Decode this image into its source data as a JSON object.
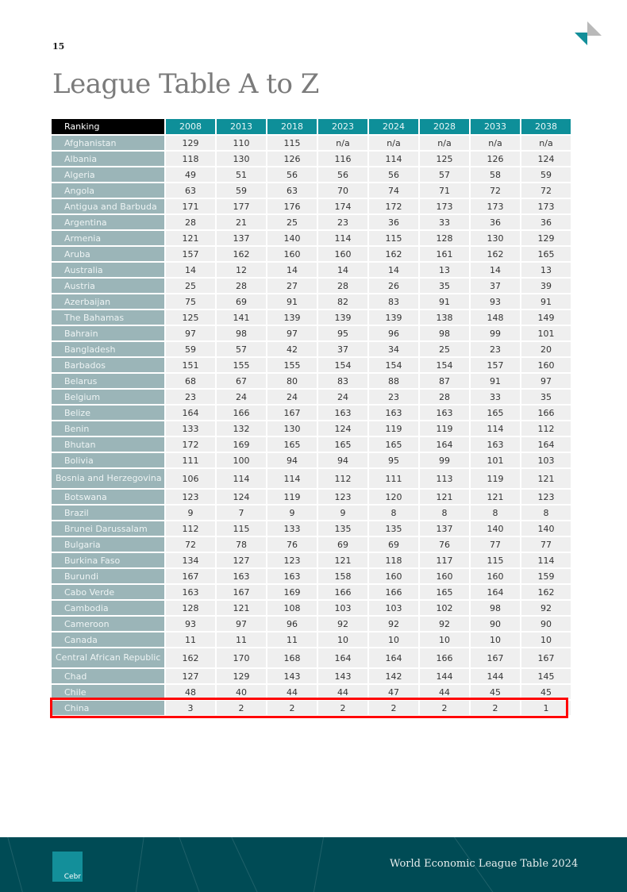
{
  "page_number": "15",
  "title": "League Table A to Z",
  "table": {
    "header": [
      "Ranking",
      "2008",
      "2013",
      "2018",
      "2023",
      "2024",
      "2028",
      "2033",
      "2038"
    ],
    "rows": [
      {
        "country": "Afghanistan",
        "values": [
          "129",
          "110",
          "115",
          "n/a",
          "n/a",
          "n/a",
          "n/a",
          "n/a"
        ]
      },
      {
        "country": "Albania",
        "values": [
          "118",
          "130",
          "126",
          "116",
          "114",
          "125",
          "126",
          "124"
        ]
      },
      {
        "country": "Algeria",
        "values": [
          "49",
          "51",
          "56",
          "56",
          "56",
          "57",
          "58",
          "59"
        ]
      },
      {
        "country": "Angola",
        "values": [
          "63",
          "59",
          "63",
          "70",
          "74",
          "71",
          "72",
          "72"
        ]
      },
      {
        "country": "Antigua and Barbuda",
        "values": [
          "171",
          "177",
          "176",
          "174",
          "172",
          "173",
          "173",
          "173"
        ]
      },
      {
        "country": "Argentina",
        "values": [
          "28",
          "21",
          "25",
          "23",
          "36",
          "33",
          "36",
          "36"
        ]
      },
      {
        "country": "Armenia",
        "values": [
          "121",
          "137",
          "140",
          "114",
          "115",
          "128",
          "130",
          "129"
        ]
      },
      {
        "country": "Aruba",
        "values": [
          "157",
          "162",
          "160",
          "160",
          "162",
          "161",
          "162",
          "165"
        ]
      },
      {
        "country": "Australia",
        "values": [
          "14",
          "12",
          "14",
          "14",
          "14",
          "13",
          "14",
          "13"
        ]
      },
      {
        "country": "Austria",
        "values": [
          "25",
          "28",
          "27",
          "28",
          "26",
          "35",
          "37",
          "39"
        ]
      },
      {
        "country": "Azerbaijan",
        "values": [
          "75",
          "69",
          "91",
          "82",
          "83",
          "91",
          "93",
          "91"
        ]
      },
      {
        "country": "The Bahamas",
        "values": [
          "125",
          "141",
          "139",
          "139",
          "139",
          "138",
          "148",
          "149"
        ]
      },
      {
        "country": "Bahrain",
        "values": [
          "97",
          "98",
          "97",
          "95",
          "96",
          "98",
          "99",
          "101"
        ]
      },
      {
        "country": "Bangladesh",
        "values": [
          "59",
          "57",
          "42",
          "37",
          "34",
          "25",
          "23",
          "20"
        ]
      },
      {
        "country": "Barbados",
        "values": [
          "151",
          "155",
          "155",
          "154",
          "154",
          "154",
          "157",
          "160"
        ]
      },
      {
        "country": "Belarus",
        "values": [
          "68",
          "67",
          "80",
          "83",
          "88",
          "87",
          "91",
          "97"
        ]
      },
      {
        "country": "Belgium",
        "values": [
          "23",
          "24",
          "24",
          "24",
          "23",
          "28",
          "33",
          "35"
        ]
      },
      {
        "country": "Belize",
        "values": [
          "164",
          "166",
          "167",
          "163",
          "163",
          "163",
          "165",
          "166"
        ]
      },
      {
        "country": "Benin",
        "values": [
          "133",
          "132",
          "130",
          "124",
          "119",
          "119",
          "114",
          "112"
        ]
      },
      {
        "country": "Bhutan",
        "values": [
          "172",
          "169",
          "165",
          "165",
          "165",
          "164",
          "163",
          "164"
        ]
      },
      {
        "country": "Bolivia",
        "values": [
          "111",
          "100",
          "94",
          "94",
          "95",
          "99",
          "101",
          "103"
        ]
      },
      {
        "country": "Bosnia and Herzegovina",
        "values": [
          "106",
          "114",
          "114",
          "112",
          "111",
          "113",
          "119",
          "121"
        ]
      },
      {
        "country": "Botswana",
        "values": [
          "123",
          "124",
          "119",
          "123",
          "120",
          "121",
          "121",
          "123"
        ]
      },
      {
        "country": "Brazil",
        "values": [
          "9",
          "7",
          "9",
          "9",
          "8",
          "8",
          "8",
          "8"
        ]
      },
      {
        "country": "Brunei Darussalam",
        "values": [
          "112",
          "115",
          "133",
          "135",
          "135",
          "137",
          "140",
          "140"
        ]
      },
      {
        "country": "Bulgaria",
        "values": [
          "72",
          "78",
          "76",
          "69",
          "69",
          "76",
          "77",
          "77"
        ]
      },
      {
        "country": "Burkina Faso",
        "values": [
          "134",
          "127",
          "123",
          "121",
          "118",
          "117",
          "115",
          "114"
        ]
      },
      {
        "country": "Burundi",
        "values": [
          "167",
          "163",
          "163",
          "158",
          "160",
          "160",
          "160",
          "159"
        ]
      },
      {
        "country": "Cabo Verde",
        "values": [
          "163",
          "167",
          "169",
          "166",
          "166",
          "165",
          "164",
          "162"
        ]
      },
      {
        "country": "Cambodia",
        "values": [
          "128",
          "121",
          "108",
          "103",
          "103",
          "102",
          "98",
          "92"
        ]
      },
      {
        "country": "Cameroon",
        "values": [
          "93",
          "97",
          "96",
          "92",
          "92",
          "92",
          "90",
          "90"
        ]
      },
      {
        "country": "Canada",
        "values": [
          "11",
          "11",
          "11",
          "10",
          "10",
          "10",
          "10",
          "10"
        ]
      },
      {
        "country": "Central African Republic",
        "values": [
          "162",
          "170",
          "168",
          "164",
          "164",
          "166",
          "167",
          "167"
        ]
      },
      {
        "country": "Chad",
        "values": [
          "127",
          "129",
          "143",
          "143",
          "142",
          "144",
          "144",
          "145"
        ]
      },
      {
        "country": "Chile",
        "values": [
          "48",
          "40",
          "44",
          "44",
          "47",
          "44",
          "45",
          "45"
        ]
      },
      {
        "country": "China",
        "values": [
          "3",
          "2",
          "2",
          "2",
          "2",
          "2",
          "2",
          "1"
        ]
      }
    ],
    "highlighted_row": "China"
  },
  "footer": {
    "title": "World Economic League Table 2024",
    "logo_text": "Cebr"
  },
  "colors": {
    "header_teal": "#0e8f99",
    "country_cell": "#9bb5b8",
    "value_cell": "#efefef",
    "footer": "#004b55",
    "highlight": "#ff0000"
  }
}
